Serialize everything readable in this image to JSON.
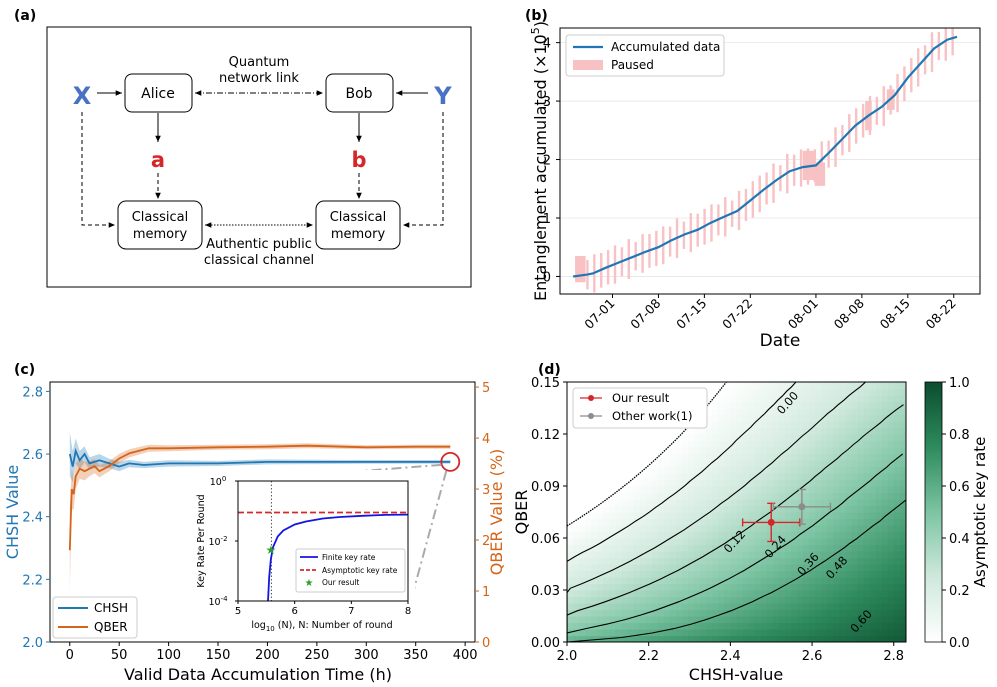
{
  "panels": {
    "a": {
      "label": "(a)",
      "nodes": {
        "alice": "Alice",
        "bob": "Bob",
        "x": "X",
        "y": "Y",
        "a": "a",
        "b": "b",
        "mem_left_1": "Classical",
        "mem_left_2": "memory",
        "mem_right_1": "Classical",
        "mem_right_2": "memory"
      },
      "quantum_label_1": "Quantum",
      "quantum_label_2": "network link",
      "public_label_1": "Authentic public",
      "public_label_2": "classical channel",
      "colors": {
        "xy": "#4a72c4",
        "ab": "#d62728"
      }
    },
    "b": {
      "label": "(b)"
    },
    "c": {
      "label": "(c)"
    },
    "d": {
      "label": "(d)"
    }
  },
  "chart_data": [
    {
      "id": "b",
      "type": "line",
      "title": "",
      "xlabel": "Date",
      "ylabel": "Entanglement accumulated (×10⁵)",
      "ylabel_main": "Entanglement accumulated (×10",
      "ylabel_exp": "5",
      "ylabel_end": ")",
      "x_ticks": [
        "07-01",
        "07-08",
        "07-15",
        "07-22",
        "08-01",
        "08-08",
        "08-15",
        "08-22"
      ],
      "x_tick_days": [
        6,
        13,
        20,
        27,
        37,
        44,
        51,
        58
      ],
      "xlim_days": [
        -2,
        62
      ],
      "ylim": [
        -0.3,
        4.25
      ],
      "y_ticks": [
        0,
        1,
        2,
        3,
        4
      ],
      "grid": "horizontal",
      "legend": [
        "Accumulated data",
        "Paused"
      ],
      "series": [
        {
          "name": "Accumulated data",
          "color": "#1f77b4",
          "x": [
            0,
            2,
            3,
            5,
            7,
            9,
            11,
            13,
            15,
            17,
            19,
            21,
            23,
            25,
            27,
            29,
            31,
            33,
            35,
            37,
            39,
            41,
            43,
            45,
            47,
            49,
            51,
            53,
            55,
            57,
            58.5
          ],
          "y": [
            0,
            0.03,
            0.05,
            0.15,
            0.24,
            0.33,
            0.42,
            0.5,
            0.62,
            0.72,
            0.8,
            0.92,
            1.02,
            1.12,
            1.3,
            1.48,
            1.65,
            1.8,
            1.87,
            1.9,
            2.12,
            2.35,
            2.58,
            2.75,
            2.9,
            3.1,
            3.4,
            3.65,
            3.9,
            4.05,
            4.1
          ]
        }
      ],
      "paused_ranges": [
        {
          "x": 0.3,
          "w": 1.6,
          "y0": -0.1,
          "y1": 0.35
        },
        {
          "x": 35,
          "w": 1.8,
          "y0": 1.65,
          "y1": 2.15
        },
        {
          "x": 36.8,
          "w": 1.6,
          "y0": 1.55,
          "y1": 1.95
        },
        {
          "x": 44.5,
          "w": 1.0,
          "y0": 2.5,
          "y1": 3.0
        },
        {
          "x": 47.8,
          "w": 1.2,
          "y0": 2.85,
          "y1": 3.2
        }
      ],
      "paused_color": "#f8c1c3"
    },
    {
      "id": "c",
      "type": "line",
      "xlabel": "Valid Data Accumulation Time (h)",
      "ylabel": "CHSH Value",
      "ylabel_right": "QBER Value (%)",
      "xlim": [
        -20,
        410
      ],
      "x_ticks": [
        0,
        50,
        100,
        150,
        200,
        250,
        300,
        350,
        400
      ],
      "ylim": [
        2.0,
        2.83
      ],
      "y_ticks": [
        "2.0",
        "2.2",
        "2.4",
        "2.6",
        "2.8"
      ],
      "y_tick_values": [
        2.0,
        2.2,
        2.4,
        2.6,
        2.8
      ],
      "ylim_right": [
        0,
        5.1
      ],
      "y_ticks_right": [
        0,
        1,
        2,
        3,
        4,
        5
      ],
      "legend": [
        "CHSH",
        "QBER"
      ],
      "series": [
        {
          "name": "CHSH",
          "color": "#1f77b4",
          "axis": "left",
          "x": [
            0,
            3,
            6,
            10,
            15,
            20,
            30,
            40,
            50,
            60,
            75,
            100,
            150,
            200,
            250,
            300,
            350,
            385
          ],
          "y": [
            2.6,
            2.56,
            2.61,
            2.58,
            2.6,
            2.57,
            2.58,
            2.57,
            2.56,
            2.57,
            2.565,
            2.57,
            2.57,
            2.575,
            2.575,
            2.575,
            2.575,
            2.575
          ],
          "band": [
            0.07,
            0.05,
            0.04,
            0.03,
            0.025,
            0.02,
            0.02,
            0.015,
            0.015,
            0.012,
            0.01,
            0.01,
            0.008,
            0.008,
            0.007,
            0.006,
            0.006,
            0.006
          ]
        },
        {
          "name": "QBER",
          "color": "#d4651b",
          "axis": "right",
          "x": [
            0,
            2,
            4,
            6,
            10,
            15,
            20,
            25,
            30,
            40,
            50,
            60,
            80,
            100,
            150,
            200,
            240,
            300,
            350,
            385
          ],
          "y": [
            1.8,
            3.0,
            2.9,
            3.25,
            3.4,
            3.35,
            3.4,
            3.45,
            3.35,
            3.45,
            3.6,
            3.7,
            3.8,
            3.8,
            3.82,
            3.83,
            3.85,
            3.82,
            3.83,
            3.83
          ],
          "band": [
            0.8,
            0.4,
            0.3,
            0.25,
            0.2,
            0.18,
            0.15,
            0.14,
            0.12,
            0.1,
            0.09,
            0.08,
            0.07,
            0.06,
            0.05,
            0.05,
            0.05,
            0.04,
            0.04,
            0.04
          ]
        }
      ],
      "marker_circle": {
        "x": 385,
        "y": 2.575,
        "color": "#d62728"
      },
      "inset": {
        "type": "line",
        "ylabel": "Key Rate Per Round",
        "xlabel_pre": "log",
        "xlabel_sub": "10",
        "xlabel_post": " (N), N: Number of round",
        "xlim": [
          5,
          8
        ],
        "x_ticks": [
          "5",
          "6",
          "7",
          "8"
        ],
        "x_tick_values": [
          5,
          6,
          7,
          8
        ],
        "ylim_exp": [
          -4,
          0
        ],
        "y_ticks": [
          {
            "base": "10",
            "exp": "0",
            "v": 0
          },
          {
            "base": "10",
            "exp": "-2",
            "v": -2
          },
          {
            "base": "10",
            "exp": "-4",
            "v": -4
          }
        ],
        "vline_x": 5.59,
        "legend": [
          "Finite key rate",
          "Asymptotic key rate",
          "Our result"
        ],
        "asymptotic_log10": -1.05,
        "finite_key": {
          "x": [
            5.53,
            5.55,
            5.58,
            5.62,
            5.7,
            5.8,
            6.0,
            6.2,
            6.5,
            6.8,
            7.2,
            7.6,
            8.0
          ],
          "log10_y": [
            -4,
            -3.2,
            -2.6,
            -2.2,
            -1.85,
            -1.65,
            -1.45,
            -1.35,
            -1.25,
            -1.2,
            -1.16,
            -1.13,
            -1.12
          ]
        },
        "our_result": {
          "x": 5.58,
          "log10_y": -2.3
        }
      }
    },
    {
      "id": "d",
      "type": "heatmap",
      "xlabel": "CHSH-value",
      "ylabel": "QBER",
      "xlim": [
        2.0,
        2.83
      ],
      "x_ticks": [
        "2.0",
        "2.2",
        "2.4",
        "2.6",
        "2.8"
      ],
      "x_tick_values": [
        2.0,
        2.2,
        2.4,
        2.6,
        2.8
      ],
      "ylim": [
        0,
        0.15
      ],
      "y_ticks": [
        "0.00",
        "0.03",
        "0.06",
        "0.09",
        "0.12",
        "0.15"
      ],
      "y_tick_values": [
        0,
        0.03,
        0.06,
        0.09,
        0.12,
        0.15
      ],
      "colorbar_label": "Asymptotic key rate",
      "colorbar_ticks": [
        "0.0",
        "0.2",
        "0.4",
        "0.6",
        "0.8",
        "1.0"
      ],
      "colorbar_values": [
        0,
        0.2,
        0.4,
        0.6,
        0.8,
        1.0
      ],
      "contour_labels": [
        {
          "text": "0.00",
          "cx": 2.54,
          "cy": 0.138
        },
        {
          "text": "0.12",
          "cx": 2.41,
          "cy": 0.058
        },
        {
          "text": "0.24",
          "cx": 2.51,
          "cy": 0.055
        },
        {
          "text": "0.36",
          "cx": 2.59,
          "cy": 0.045
        },
        {
          "text": "0.48",
          "cx": 2.66,
          "cy": 0.043
        },
        {
          "text": "0.60",
          "cx": 2.72,
          "cy": 0.012
        }
      ],
      "contour_levels": [
        0.0,
        0.12,
        0.24,
        0.36,
        0.48,
        0.6
      ],
      "legend": [
        "Our result",
        "Other work(1)"
      ],
      "points": [
        {
          "name": "Our result",
          "x": 2.5,
          "y": 0.069,
          "xerr": 0.07,
          "yerr": 0.011,
          "color": "#d62728"
        },
        {
          "name": "Other work(1)",
          "x": 2.575,
          "y": 0.078,
          "xerr": 0.07,
          "yerr": 0.01,
          "color": "#8c8c8c"
        }
      ],
      "cmap": [
        "#ffffff",
        "#0b4d2e"
      ]
    }
  ]
}
